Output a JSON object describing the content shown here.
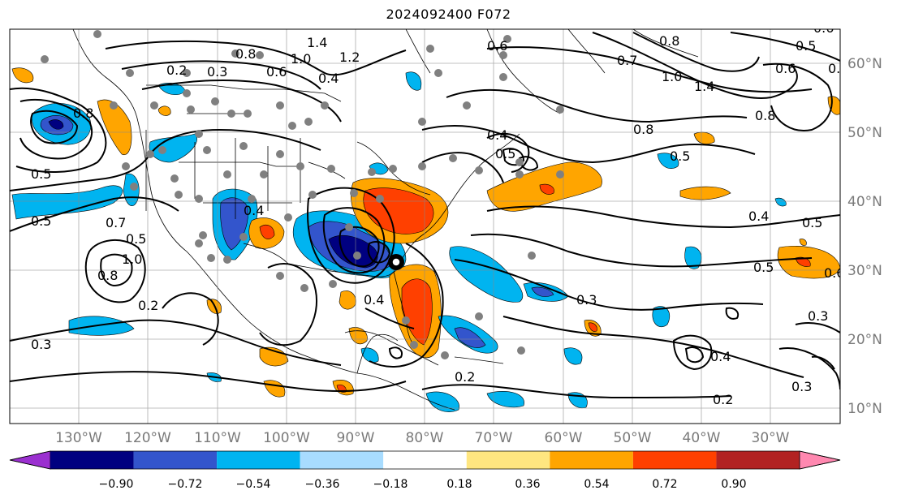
{
  "title": "2024092400 F072",
  "map": {
    "projection": "cylindrical",
    "lon_range": [
      "137°W",
      "17°W"
    ],
    "lat_range": [
      "7°N",
      "65°N"
    ],
    "gridlines": true
  },
  "longitude_labels": [
    "130°W",
    "120°W",
    "110°W",
    "100°W",
    "90°W",
    "80°W",
    "70°W",
    "60°W",
    "50°W",
    "40°W",
    "30°W"
  ],
  "latitude_labels": [
    "60°N",
    "50°N",
    "40°N",
    "30°N",
    "20°N",
    "10°N"
  ],
  "colorbar": {
    "extend": "both",
    "colors": [
      "#9b30d0",
      "#000080",
      "#3355cc",
      "#00b4f0",
      "#a8dcff",
      "#ffffff",
      "#ffe680",
      "#ffa500",
      "#ff4000",
      "#b22222",
      "#ff88b0"
    ],
    "tick_labels": [
      "−0.90",
      "−0.72",
      "−0.54",
      "−0.36",
      "−0.18",
      "0.18",
      "0.36",
      "0.54",
      "0.72",
      "0.90"
    ]
  },
  "contour_labels": [
    "1.4",
    "1.2",
    "1.0",
    "0.8",
    "0.6",
    "0.4",
    "0.2",
    "0.3",
    "0.5",
    "1.4",
    "1.0",
    "0.8",
    "0.6",
    "0.8",
    "0.6",
    "0.5",
    "0.3",
    "0.5",
    "0.4",
    "0.2",
    "0.7",
    "0.3",
    "0.5",
    "0.4",
    "0.4",
    "0.6",
    "0.3",
    "0.2",
    "0.5",
    "0.4",
    "0.3",
    "0.2",
    "0.4",
    "0.5",
    "0.8",
    "0.7",
    "1.0",
    "0.4",
    "0.5",
    "0.8",
    "0.8",
    "0.5",
    "0.6"
  ],
  "legend_colors": {
    "negative": "#00b4f0",
    "positive": "#ffa500",
    "station_dots": "#808080"
  }
}
